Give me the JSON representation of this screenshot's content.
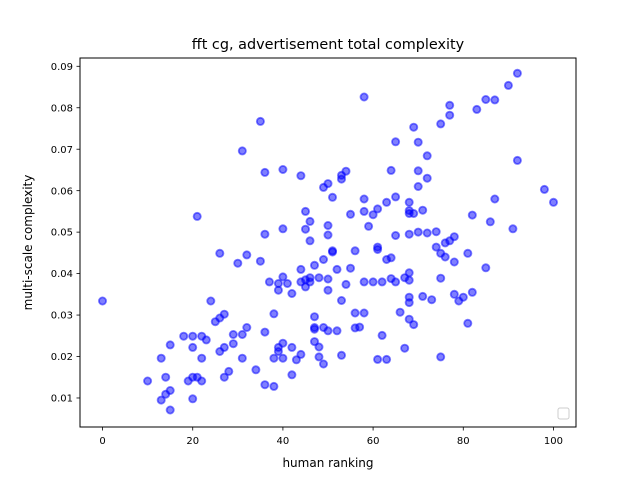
{
  "chart_data": {
    "type": "scatter",
    "title": "fft cg, advertisement total complexity",
    "xlabel": "human ranking",
    "ylabel": "multi-scale complexity",
    "xlim": [
      -5,
      105
    ],
    "ylim": [
      0.003,
      0.092
    ],
    "xticks": [
      0,
      20,
      40,
      60,
      80,
      100
    ],
    "xtick_labels": [
      "0",
      "20",
      "40",
      "60",
      "80",
      "100"
    ],
    "yticks": [
      0.01,
      0.02,
      0.03,
      0.04,
      0.05,
      0.06,
      0.07,
      0.08,
      0.09
    ],
    "ytick_labels": [
      "0.01",
      "0.02",
      "0.03",
      "0.04",
      "0.05",
      "0.06",
      "0.07",
      "0.08",
      "0.09"
    ],
    "grid": false,
    "legend": "lower-right, empty",
    "marker_color": "#0000ff",
    "points": [
      [
        0,
        0.0334
      ],
      [
        10,
        0.0141
      ],
      [
        13,
        0.0196
      ],
      [
        13,
        0.0095
      ],
      [
        14,
        0.015
      ],
      [
        14,
        0.0109
      ],
      [
        15,
        0.0071
      ],
      [
        15,
        0.0228
      ],
      [
        15,
        0.0118
      ],
      [
        18,
        0.0249
      ],
      [
        19,
        0.0141
      ],
      [
        20,
        0.0249
      ],
      [
        20,
        0.0098
      ],
      [
        20,
        0.0222
      ],
      [
        20,
        0.015
      ],
      [
        21,
        0.015
      ],
      [
        21,
        0.0538
      ],
      [
        22,
        0.0249
      ],
      [
        22,
        0.0141
      ],
      [
        22,
        0.0196
      ],
      [
        23,
        0.024
      ],
      [
        24,
        0.0334
      ],
      [
        25,
        0.0284
      ],
      [
        26,
        0.0449
      ],
      [
        26,
        0.0212
      ],
      [
        26,
        0.0293
      ],
      [
        27,
        0.015
      ],
      [
        27,
        0.0222
      ],
      [
        27,
        0.0302
      ],
      [
        28,
        0.0164
      ],
      [
        29,
        0.0253
      ],
      [
        29,
        0.0231
      ],
      [
        30,
        0.0425
      ],
      [
        31,
        0.0196
      ],
      [
        31,
        0.0696
      ],
      [
        31,
        0.0253
      ],
      [
        32,
        0.0445
      ],
      [
        32,
        0.027
      ],
      [
        34,
        0.0168
      ],
      [
        35,
        0.0767
      ],
      [
        35,
        0.043
      ],
      [
        36,
        0.0644
      ],
      [
        36,
        0.0495
      ],
      [
        36,
        0.0259
      ],
      [
        36,
        0.0132
      ],
      [
        37,
        0.038
      ],
      [
        38,
        0.0303
      ],
      [
        38,
        0.0128
      ],
      [
        38,
        0.0196
      ],
      [
        39,
        0.0376
      ],
      [
        39,
        0.036
      ],
      [
        39,
        0.0212
      ],
      [
        39,
        0.0222
      ],
      [
        40,
        0.0651
      ],
      [
        40,
        0.0508
      ],
      [
        40,
        0.0392
      ],
      [
        40,
        0.0232
      ],
      [
        40,
        0.0196
      ],
      [
        41,
        0.0376
      ],
      [
        42,
        0.0352
      ],
      [
        42,
        0.0222
      ],
      [
        42,
        0.0156
      ],
      [
        43,
        0.0192
      ],
      [
        44,
        0.0636
      ],
      [
        44,
        0.041
      ],
      [
        44,
        0.038
      ],
      [
        44,
        0.0205
      ],
      [
        45,
        0.055
      ],
      [
        45,
        0.0507
      ],
      [
        45,
        0.0368
      ],
      [
        45,
        0.0385
      ],
      [
        46,
        0.0526
      ],
      [
        46,
        0.0479
      ],
      [
        46,
        0.039
      ],
      [
        46,
        0.038
      ],
      [
        47,
        0.042
      ],
      [
        47,
        0.0296
      ],
      [
        47,
        0.0266
      ],
      [
        47,
        0.027
      ],
      [
        47,
        0.0236
      ],
      [
        48,
        0.0223
      ],
      [
        48,
        0.0199
      ],
      [
        48,
        0.039
      ],
      [
        49,
        0.0608
      ],
      [
        49,
        0.0434
      ],
      [
        49,
        0.027
      ],
      [
        49,
        0.0182
      ],
      [
        50,
        0.0617
      ],
      [
        50,
        0.0516
      ],
      [
        50,
        0.0493
      ],
      [
        50,
        0.0387
      ],
      [
        50,
        0.036
      ],
      [
        50,
        0.0262
      ],
      [
        51,
        0.0452
      ],
      [
        51,
        0.0455
      ],
      [
        51,
        0.0584
      ],
      [
        52,
        0.041
      ],
      [
        52,
        0.0262
      ],
      [
        53,
        0.0637
      ],
      [
        53,
        0.0628
      ],
      [
        53,
        0.0335
      ],
      [
        53,
        0.0203
      ],
      [
        54,
        0.0647
      ],
      [
        54,
        0.0374
      ],
      [
        55,
        0.0543
      ],
      [
        55,
        0.0413
      ],
      [
        56,
        0.0455
      ],
      [
        56,
        0.0269
      ],
      [
        56,
        0.0305
      ],
      [
        57,
        0.0271
      ],
      [
        58,
        0.0826
      ],
      [
        58,
        0.058
      ],
      [
        58,
        0.055
      ],
      [
        58,
        0.038
      ],
      [
        58,
        0.0305
      ],
      [
        59,
        0.0514
      ],
      [
        60,
        0.0542
      ],
      [
        60,
        0.038
      ],
      [
        61,
        0.0464
      ],
      [
        61,
        0.0458
      ],
      [
        61,
        0.0556
      ],
      [
        61,
        0.0193
      ],
      [
        62,
        0.038
      ],
      [
        62,
        0.0251
      ],
      [
        63,
        0.0572
      ],
      [
        63,
        0.0434
      ],
      [
        63,
        0.0193
      ],
      [
        64,
        0.0649
      ],
      [
        64,
        0.0388
      ],
      [
        64,
        0.0438
      ],
      [
        65,
        0.0718
      ],
      [
        65,
        0.0585
      ],
      [
        65,
        0.0492
      ],
      [
        65,
        0.038
      ],
      [
        66,
        0.0307
      ],
      [
        67,
        0.022
      ],
      [
        67,
        0.039
      ],
      [
        68,
        0.0572
      ],
      [
        68,
        0.0552
      ],
      [
        68,
        0.0545
      ],
      [
        68,
        0.0495
      ],
      [
        68,
        0.0402
      ],
      [
        68,
        0.0384
      ],
      [
        68,
        0.0343
      ],
      [
        68,
        0.033
      ],
      [
        68,
        0.029
      ],
      [
        69,
        0.0753
      ],
      [
        69,
        0.0545
      ],
      [
        69,
        0.0277
      ],
      [
        70,
        0.0717
      ],
      [
        70,
        0.0648
      ],
      [
        70,
        0.061
      ],
      [
        70,
        0.05
      ],
      [
        71,
        0.0553
      ],
      [
        71,
        0.0345
      ],
      [
        72,
        0.0684
      ],
      [
        72,
        0.063
      ],
      [
        72,
        0.0498
      ],
      [
        73,
        0.0337
      ],
      [
        74,
        0.0501
      ],
      [
        74,
        0.0464
      ],
      [
        75,
        0.0761
      ],
      [
        75,
        0.0449
      ],
      [
        75,
        0.0389
      ],
      [
        75,
        0.0199
      ],
      [
        76,
        0.0474
      ],
      [
        76,
        0.044
      ],
      [
        77,
        0.0806
      ],
      [
        77,
        0.0782
      ],
      [
        77,
        0.0479
      ],
      [
        78,
        0.0489
      ],
      [
        78,
        0.0428
      ],
      [
        78,
        0.035
      ],
      [
        79,
        0.0334
      ],
      [
        80,
        0.0343
      ],
      [
        81,
        0.0449
      ],
      [
        81,
        0.028
      ],
      [
        82,
        0.0541
      ],
      [
        82,
        0.0355
      ],
      [
        83,
        0.0796
      ],
      [
        85,
        0.082
      ],
      [
        85,
        0.0414
      ],
      [
        86,
        0.0525
      ],
      [
        87,
        0.0819
      ],
      [
        87,
        0.058
      ],
      [
        90,
        0.0854
      ],
      [
        91,
        0.0508
      ],
      [
        92,
        0.0883
      ],
      [
        92,
        0.0673
      ],
      [
        98,
        0.0603
      ],
      [
        100,
        0.0572
      ]
    ]
  }
}
